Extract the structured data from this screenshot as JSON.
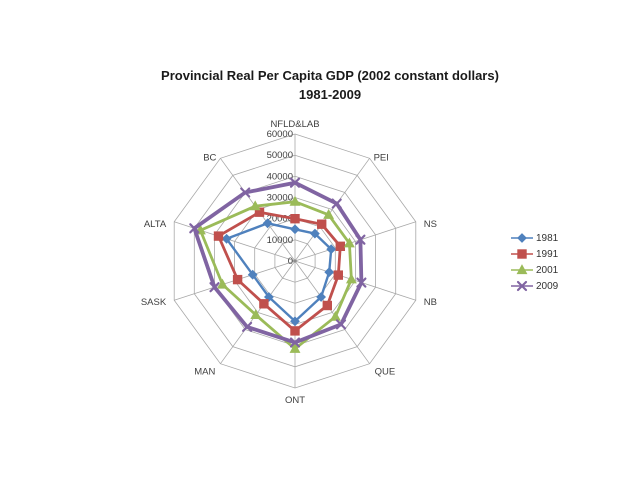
{
  "title": {
    "line1": "Provincial Real Per Capita GDP (2002 constant dollars)",
    "line2": "1981-2009"
  },
  "chart_data": {
    "type": "radar",
    "title": "Provincial Real Per Capita GDP (2002 constant dollars)",
    "subtitle": "1981-2009",
    "categories": [
      "NFLD&LAB",
      "PEI",
      "NS",
      "NB",
      "QUE",
      "ONT",
      "MAN",
      "SASK",
      "ALTA",
      "BC"
    ],
    "series": [
      {
        "name": "1981",
        "color": "#4F81BD",
        "marker": "diamond",
        "values": [
          15000,
          16000,
          18000,
          17000,
          21000,
          28500,
          21000,
          21000,
          34000,
          22000
        ]
      },
      {
        "name": "1991",
        "color": "#C0504D",
        "marker": "square",
        "values": [
          20000,
          21500,
          22500,
          21500,
          26000,
          33000,
          25000,
          28500,
          38000,
          28500
        ]
      },
      {
        "name": "2001",
        "color": "#9BBB59",
        "marker": "triangle",
        "values": [
          28000,
          27000,
          27000,
          28000,
          32500,
          41500,
          31500,
          36000,
          47000,
          32000
        ]
      },
      {
        "name": "2009",
        "color": "#8064A2",
        "marker": "x",
        "values": [
          37000,
          33500,
          32500,
          33000,
          37000,
          38500,
          38500,
          40000,
          50000,
          40000
        ]
      }
    ],
    "axis": {
      "min": 0,
      "max": 60000,
      "step": 10000,
      "tick_labels": [
        "0",
        "10000",
        "20000",
        "30000",
        "40000",
        "50000",
        "60000"
      ]
    },
    "grid": true,
    "grid_color": "#A8A8A8",
    "text_color": "#3F3F3F",
    "legend_position": "right",
    "background": "#FFFFFF"
  }
}
